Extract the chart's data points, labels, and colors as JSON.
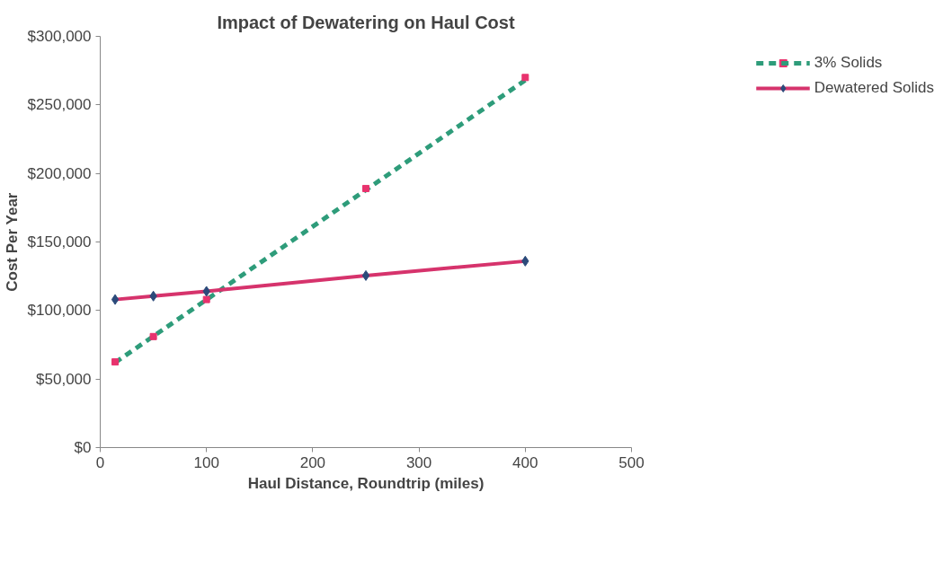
{
  "chart_data": {
    "type": "line",
    "title": "Impact of Dewatering on Haul Cost",
    "xlabel": "Haul Distance, Roundtrip (miles)",
    "ylabel": "Cost Per Year",
    "xlim": [
      0,
      500
    ],
    "xticks": [
      0,
      100,
      200,
      300,
      400,
      500
    ],
    "ylim": [
      0,
      300000
    ],
    "yticks": [
      {
        "value": 0,
        "label": "$0"
      },
      {
        "value": 50000,
        "label": "$50,000"
      },
      {
        "value": 100000,
        "label": "$100,000"
      },
      {
        "value": 150000,
        "label": "$150,000"
      },
      {
        "value": 200000,
        "label": "$200,000"
      },
      {
        "value": 250000,
        "label": "$250,000"
      },
      {
        "value": 300000,
        "label": "$300,000"
      }
    ],
    "grid": false,
    "legend": "right",
    "series": [
      {
        "name": "3% Solids",
        "type": "scatter",
        "marker": "square",
        "color": "#e8336e",
        "x": [
          14,
          50,
          100,
          250,
          400
        ],
        "values": [
          62500,
          81000,
          108000,
          189000,
          270000
        ]
      },
      {
        "line_style": "dashed",
        "marker": "none",
        "color": "#2e9c7a",
        "x": [
          14,
          400
        ],
        "values": [
          62000,
          268000
        ]
      },
      {
        "name": "Dewatered Solids",
        "line_style": "solid",
        "marker": "diamond",
        "color": "#d6336c",
        "colors": [
          "#2b4a7a",
          "#2b4a7a",
          "#2b4a7a",
          "#2b4a7a",
          "#2b4a7a"
        ],
        "x": [
          14,
          50,
          100,
          250,
          400
        ],
        "values": [
          108000,
          110500,
          114000,
          125500,
          136000
        ]
      }
    ]
  }
}
